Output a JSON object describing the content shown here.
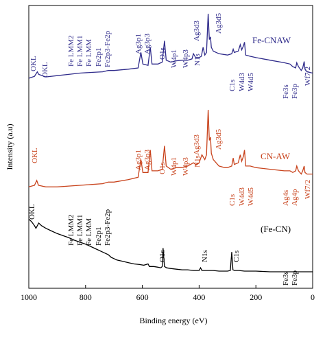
{
  "chart_data": {
    "type": "line",
    "xlabel": "Binding energy (eV)",
    "ylabel": "Intensity (a.u)",
    "xlim": [
      1000,
      0
    ],
    "x_ticks": [
      1000,
      800,
      600,
      400,
      200,
      0
    ],
    "x_reversed": true,
    "y_tick_labels": false,
    "colors": {
      "blue": "#2e2a8a",
      "red": "#c8421b",
      "black": "#000000"
    },
    "series": [
      {
        "name": "Fe-CNAW",
        "color": "#2e2a8a",
        "points": [
          [
            1000,
            0
          ],
          [
            980,
            3
          ],
          [
            970,
            10
          ],
          [
            965,
            6
          ],
          [
            940,
            2
          ],
          [
            900,
            4
          ],
          [
            860,
            6
          ],
          [
            820,
            8
          ],
          [
            780,
            9
          ],
          [
            740,
            10
          ],
          [
            720,
            12
          ],
          [
            700,
            12
          ],
          [
            650,
            14
          ],
          [
            615,
            16
          ],
          [
            605,
            40
          ],
          [
            598,
            22
          ],
          [
            580,
            20
          ],
          [
            572,
            48
          ],
          [
            566,
            22
          ],
          [
            545,
            22
          ],
          [
            530,
            25
          ],
          [
            522,
            58
          ],
          [
            516,
            28
          ],
          [
            500,
            25
          ],
          [
            480,
            27
          ],
          [
            460,
            28
          ],
          [
            440,
            28
          ],
          [
            425,
            30
          ],
          [
            420,
            38
          ],
          [
            412,
            32
          ],
          [
            400,
            32
          ],
          [
            392,
            34
          ],
          [
            386,
            48
          ],
          [
            380,
            36
          ],
          [
            374,
            40
          ],
          [
            368,
            100
          ],
          [
            364,
            60
          ],
          [
            360,
            64
          ],
          [
            357,
            48
          ],
          [
            350,
            42
          ],
          [
            330,
            38
          ],
          [
            300,
            36
          ],
          [
            285,
            38
          ],
          [
            280,
            45
          ],
          [
            276,
            40
          ],
          [
            262,
            42
          ],
          [
            255,
            52
          ],
          [
            250,
            44
          ],
          [
            244,
            50
          ],
          [
            240,
            56
          ],
          [
            236,
            36
          ],
          [
            220,
            34
          ],
          [
            200,
            32
          ],
          [
            150,
            28
          ],
          [
            100,
            24
          ],
          [
            80,
            22
          ],
          [
            70,
            18
          ],
          [
            60,
            16
          ],
          [
            56,
            24
          ],
          [
            50,
            18
          ],
          [
            40,
            12
          ],
          [
            35,
            16
          ],
          [
            30,
            26
          ],
          [
            27,
            14
          ],
          [
            20,
            10
          ],
          [
            0,
            8
          ]
        ]
      },
      {
        "name": "CN-AW",
        "color": "#c8421b",
        "points": [
          [
            1000,
            4
          ],
          [
            980,
            6
          ],
          [
            972,
            12
          ],
          [
            966,
            6
          ],
          [
            940,
            4
          ],
          [
            900,
            4
          ],
          [
            860,
            5
          ],
          [
            820,
            6
          ],
          [
            780,
            7
          ],
          [
            740,
            8
          ],
          [
            720,
            10
          ],
          [
            700,
            10
          ],
          [
            650,
            13
          ],
          [
            615,
            16
          ],
          [
            605,
            38
          ],
          [
            598,
            22
          ],
          [
            580,
            22
          ],
          [
            572,
            50
          ],
          [
            566,
            24
          ],
          [
            545,
            24
          ],
          [
            530,
            26
          ],
          [
            522,
            55
          ],
          [
            516,
            30
          ],
          [
            500,
            26
          ],
          [
            480,
            28
          ],
          [
            460,
            28
          ],
          [
            440,
            30
          ],
          [
            420,
            34
          ],
          [
            412,
            32
          ],
          [
            400,
            34
          ],
          [
            390,
            44
          ],
          [
            380,
            38
          ],
          [
            374,
            44
          ],
          [
            368,
            100
          ],
          [
            364,
            62
          ],
          [
            360,
            66
          ],
          [
            357,
            46
          ],
          [
            350,
            38
          ],
          [
            330,
            30
          ],
          [
            310,
            28
          ],
          [
            300,
            28
          ],
          [
            285,
            30
          ],
          [
            280,
            40
          ],
          [
            276,
            32
          ],
          [
            262,
            34
          ],
          [
            255,
            44
          ],
          [
            250,
            36
          ],
          [
            244,
            42
          ],
          [
            240,
            50
          ],
          [
            236,
            30
          ],
          [
            220,
            30
          ],
          [
            200,
            28
          ],
          [
            150,
            26
          ],
          [
            100,
            24
          ],
          [
            80,
            24
          ],
          [
            70,
            22
          ],
          [
            60,
            24
          ],
          [
            56,
            30
          ],
          [
            50,
            24
          ],
          [
            40,
            20
          ],
          [
            35,
            24
          ],
          [
            30,
            30
          ],
          [
            27,
            22
          ],
          [
            20,
            20
          ],
          [
            0,
            20
          ]
        ]
      },
      {
        "name": "(Fe-CN)",
        "color": "#000000",
        "points": [
          [
            1000,
            80
          ],
          [
            990,
            76
          ],
          [
            980,
            70
          ],
          [
            975,
            66
          ],
          [
            965,
            74
          ],
          [
            955,
            70
          ],
          [
            940,
            66
          ],
          [
            920,
            62
          ],
          [
            900,
            58
          ],
          [
            880,
            55
          ],
          [
            860,
            52
          ],
          [
            840,
            48
          ],
          [
            820,
            45
          ],
          [
            800,
            42
          ],
          [
            780,
            38
          ],
          [
            760,
            34
          ],
          [
            740,
            30
          ],
          [
            720,
            26
          ],
          [
            710,
            22
          ],
          [
            700,
            20
          ],
          [
            690,
            18
          ],
          [
            670,
            16
          ],
          [
            650,
            14
          ],
          [
            630,
            12
          ],
          [
            610,
            11
          ],
          [
            595,
            10
          ],
          [
            580,
            12
          ],
          [
            575,
            8
          ],
          [
            560,
            8
          ],
          [
            545,
            7
          ],
          [
            535,
            6
          ],
          [
            530,
            8
          ],
          [
            527,
            36
          ],
          [
            522,
            8
          ],
          [
            515,
            6
          ],
          [
            500,
            5
          ],
          [
            480,
            4
          ],
          [
            460,
            3
          ],
          [
            440,
            3
          ],
          [
            420,
            2
          ],
          [
            400,
            2
          ],
          [
            395,
            6
          ],
          [
            390,
            2
          ],
          [
            370,
            2
          ],
          [
            350,
            2
          ],
          [
            330,
            1
          ],
          [
            300,
            1
          ],
          [
            290,
            2
          ],
          [
            285,
            30
          ],
          [
            281,
            3
          ],
          [
            275,
            2
          ],
          [
            260,
            2
          ],
          [
            240,
            1
          ],
          [
            200,
            1
          ],
          [
            150,
            0
          ],
          [
            100,
            0
          ],
          [
            60,
            0
          ],
          [
            50,
            0
          ],
          [
            40,
            0
          ],
          [
            0,
            0
          ]
        ]
      }
    ],
    "series_label_text": {
      "blue": "Fe-CNAW",
      "red": "CN-AW",
      "black": "(Fe-CN)"
    },
    "annotations": {
      "blue": [
        "OKL",
        "OKL",
        "Fe LMM2",
        "Fe LMM1",
        "Fe LMM",
        "Fe2p1",
        "Fe2p3-Fe2p",
        "Ag3p1",
        "Ag3p3",
        "O1s",
        "W4p1",
        "W4p3",
        "N1s",
        "Ag3d3",
        "Ag3d5",
        "C1s",
        "W4d3",
        "W4d5",
        "Fe3s",
        "Fe3p",
        "Wf7/2"
      ],
      "red": [
        "OKL",
        "Ag3p1",
        "Ag3p3",
        "O1s",
        "W4p1",
        "W4p3",
        "N1s",
        "Ag3d3",
        "Ag3d5",
        "C1s",
        "W4d3",
        "W4d5",
        "Ag4s",
        "Ag4p",
        "Wf7/2"
      ],
      "black": [
        "OKL",
        "Fe LMM2",
        "Fe LMM1",
        "Fe LMM",
        "Fe2p1",
        "Fe2p3-Fe2p",
        "O1s",
        "N1s",
        "C1s",
        "Fe3s",
        "Fe3p"
      ]
    }
  }
}
